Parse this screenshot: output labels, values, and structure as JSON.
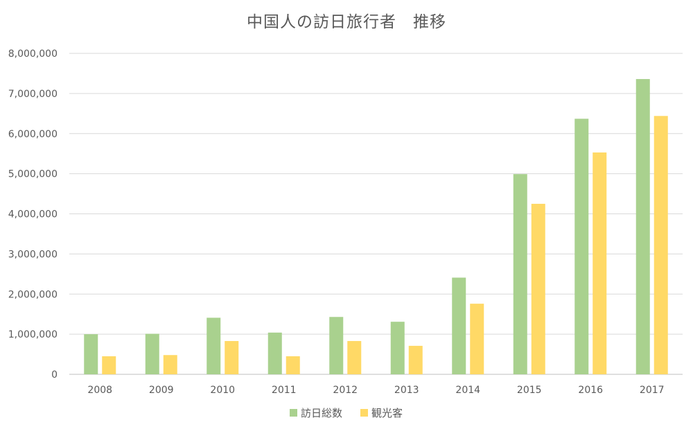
{
  "chart_data": {
    "type": "bar",
    "title": "中国人の訪日旅行者　推移",
    "categories": [
      "2008",
      "2009",
      "2010",
      "2011",
      "2012",
      "2013",
      "2014",
      "2015",
      "2016",
      "2017"
    ],
    "series": [
      {
        "name": "訪日総数",
        "color": "#a9d18e",
        "values": [
          1000000,
          1010000,
          1410000,
          1040000,
          1430000,
          1310000,
          2410000,
          4990000,
          6370000,
          7360000
        ]
      },
      {
        "name": "観光客",
        "color": "#ffd966",
        "values": [
          450000,
          480000,
          830000,
          450000,
          830000,
          710000,
          1760000,
          4250000,
          5530000,
          6440000
        ]
      }
    ],
    "yticks": [
      "0",
      "1,000,000",
      "2,000,000",
      "3,000,000",
      "4,000,000",
      "5,000,000",
      "6,000,000",
      "7,000,000",
      "8,000,000"
    ],
    "ylim": [
      0,
      8000000
    ],
    "grid": true,
    "legend_position": "bottom",
    "xlabel": "",
    "ylabel": ""
  }
}
